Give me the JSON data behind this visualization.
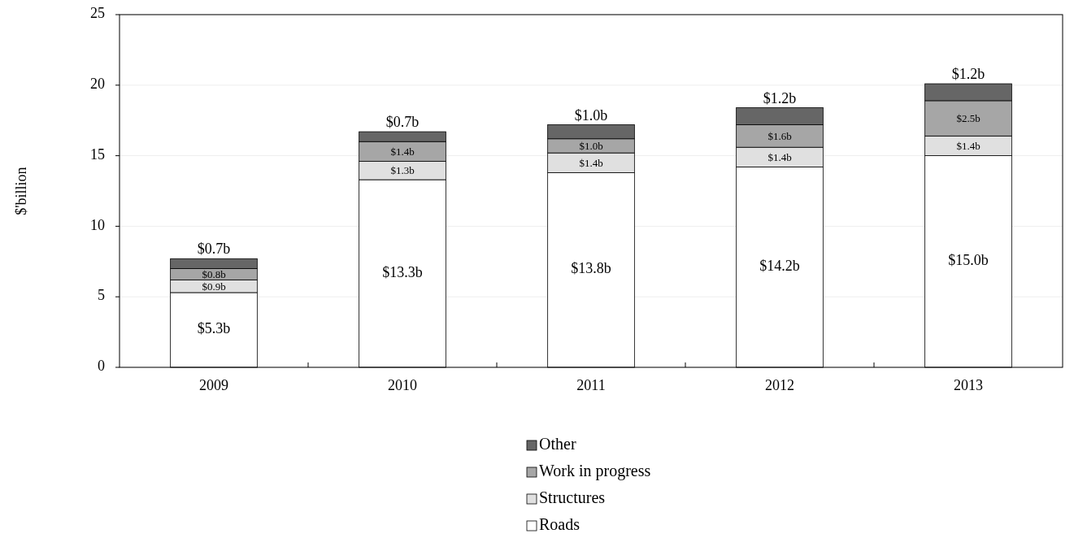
{
  "chart_data": {
    "type": "bar",
    "stacked": true,
    "ylabel": "$'billion",
    "categories": [
      "2009",
      "2010",
      "2011",
      "2012",
      "2013"
    ],
    "ylim": [
      0,
      25
    ],
    "yticks": [
      0,
      5,
      10,
      15,
      20,
      25
    ],
    "grid": "y",
    "legend": "bottom",
    "series": [
      {
        "name": "Roads",
        "color": "#ffffff",
        "values": [
          5.3,
          13.3,
          13.8,
          14.2,
          15.0
        ],
        "value_labels": [
          "$5.3b",
          "$13.3b",
          "$13.8b",
          "$14.2b",
          "$15.0b"
        ]
      },
      {
        "name": "Structures",
        "color": "#e0e0e0",
        "values": [
          0.9,
          1.3,
          1.4,
          1.4,
          1.4
        ],
        "value_labels": [
          "$0.9b",
          "$1.3b",
          "$1.4b",
          "$1.4b",
          "$1.4b"
        ]
      },
      {
        "name": "Work in progress",
        "color": "#a6a6a6",
        "values": [
          0.8,
          1.4,
          1.0,
          1.6,
          2.5
        ],
        "value_labels": [
          "$0.8b",
          "$1.4b",
          "$1.0b",
          "$1.6b",
          "$2.5b"
        ]
      },
      {
        "name": "Other",
        "color": "#666666",
        "values": [
          0.7,
          0.7,
          1.0,
          1.2,
          1.2
        ],
        "value_labels": [
          "$0.7b",
          "$0.7b",
          "$1.0b",
          "$1.2b",
          "$1.2b"
        ]
      }
    ]
  }
}
